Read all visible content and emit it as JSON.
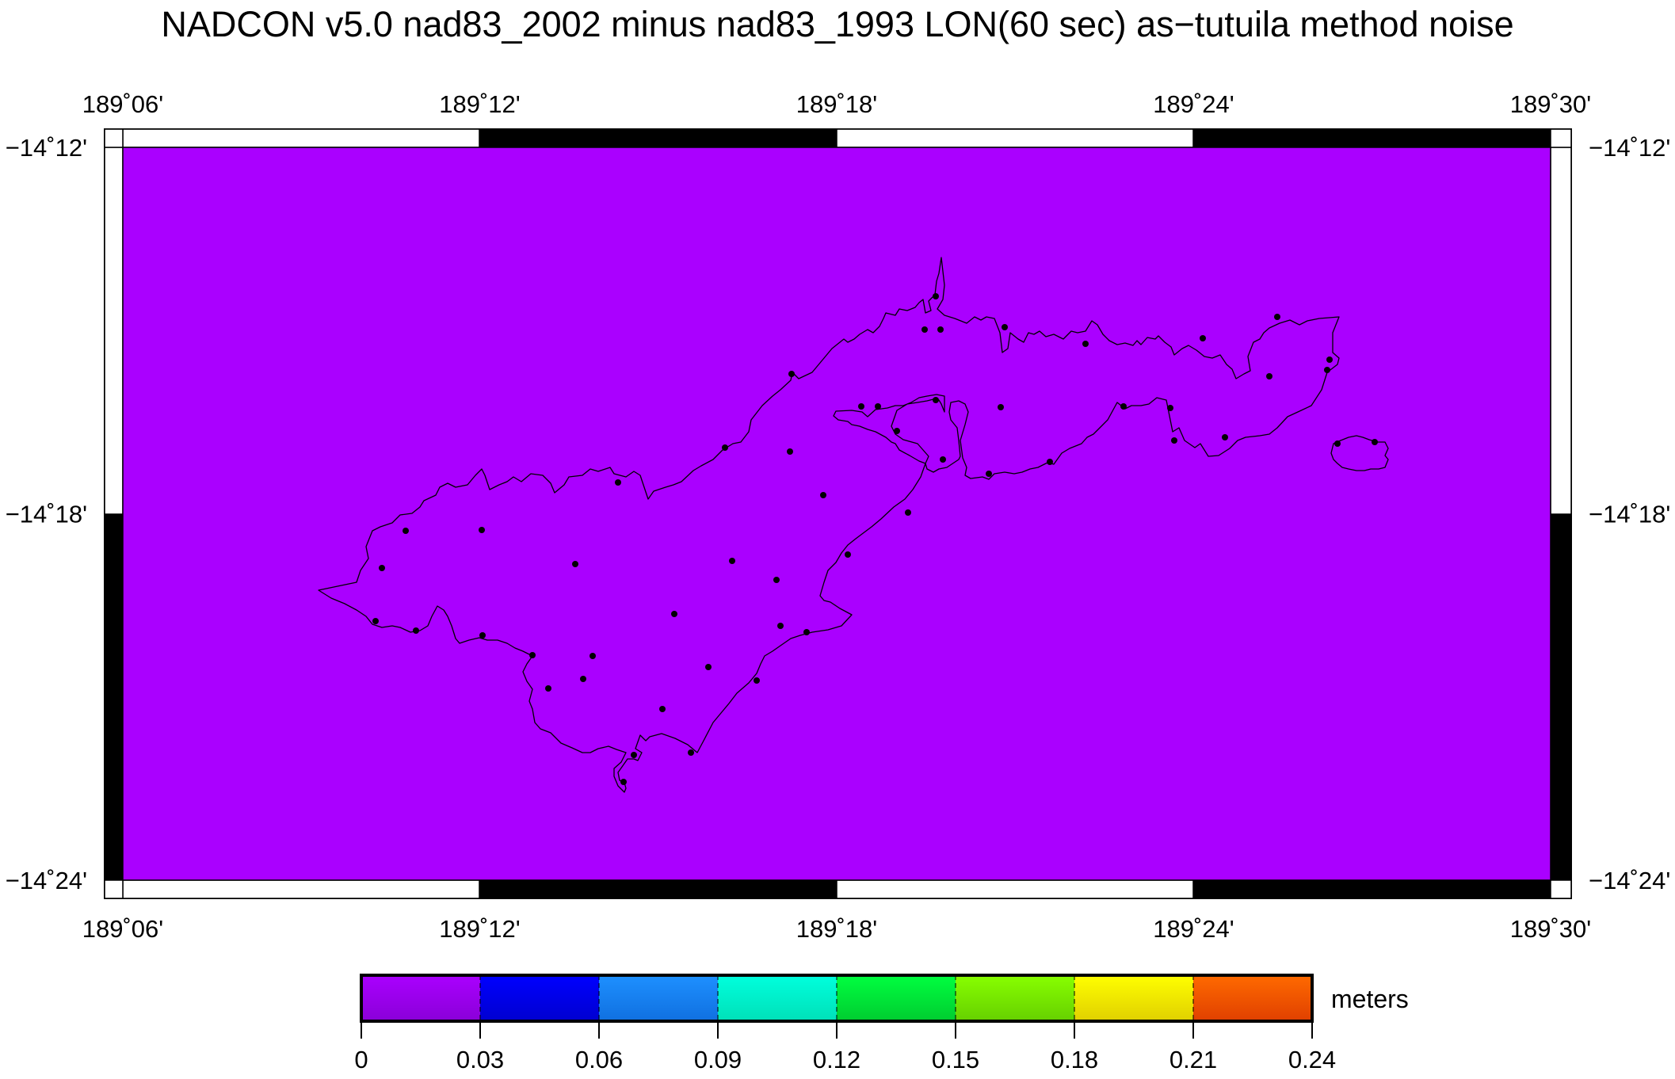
{
  "title": "NADCON v5.0 nad83_2002 minus nad83_1993 LON(60 sec) as−tutuila method noise",
  "map": {
    "fill_color": "#aa00ff",
    "lon_ticks": [
      {
        "value": 189.1,
        "label": "189˚06'"
      },
      {
        "value": 189.2,
        "label": "189˚12'"
      },
      {
        "value": 189.3,
        "label": "189˚18'"
      },
      {
        "value": 189.4,
        "label": "189˚24'"
      },
      {
        "value": 189.5,
        "label": "189˚30'"
      }
    ],
    "lat_ticks": [
      {
        "value": -14.2,
        "label": "−14˚12'"
      },
      {
        "value": -14.3,
        "label": "−14˚18'"
      },
      {
        "value": -14.4,
        "label": "−14˚24'"
      }
    ]
  },
  "colorbar": {
    "unit_label": "meters",
    "tick_labels": [
      "0",
      "0.03",
      "0.06",
      "0.09",
      "0.12",
      "0.15",
      "0.18",
      "0.21",
      "0.24"
    ],
    "segments": [
      {
        "from": "#aa00ff",
        "to": "#8a00d8"
      },
      {
        "from": "#0000ff",
        "to": "#0000d0"
      },
      {
        "from": "#1e90ff",
        "to": "#1070e0"
      },
      {
        "from": "#00ffdd",
        "to": "#00e0b8"
      },
      {
        "from": "#00ff40",
        "to": "#00cc30"
      },
      {
        "from": "#88ff00",
        "to": "#66d000"
      },
      {
        "from": "#ffff00",
        "to": "#e0d000"
      },
      {
        "from": "#ff6a00",
        "to": "#e04000"
      }
    ]
  }
}
